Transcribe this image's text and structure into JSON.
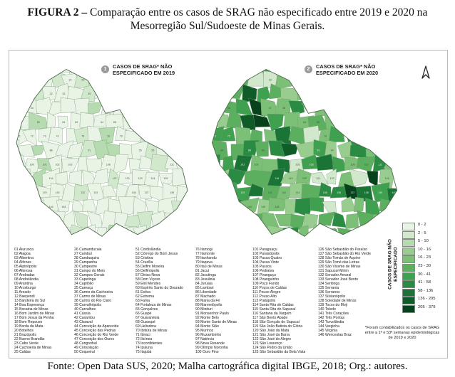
{
  "title": {
    "figure_label": "FIGURA 2 –",
    "text": "Comparação entre os casos de SRAG não especificado entre 2019 e 2020 na Mesorregião Sul/Sudoeste de Minas Gerais."
  },
  "map_2019": {
    "number": "1",
    "label_line1": "CASOS DE SRAG* NÃO",
    "label_line2": "ESPECIFICADO EM 2019"
  },
  "map_2020": {
    "number": "2",
    "label_line1": "CASOS DE SRAG* NÃO",
    "label_line2": "ESPECIFICADO EM 2020"
  },
  "legend": {
    "title": "CASOS DE SRAG NÃO ESPECIFICADO",
    "classes": [
      {
        "label": "0 - 2",
        "color": "#e9f3e6"
      },
      {
        "label": "2 - 5",
        "color": "#d2e8cd"
      },
      {
        "label": "5 - 10",
        "color": "#b7dbb0"
      },
      {
        "label": "10 - 16",
        "color": "#99cd90"
      },
      {
        "label": "16 - 23",
        "color": "#7cbf76"
      },
      {
        "label": "23 - 30",
        "color": "#5caf5f"
      },
      {
        "label": "30 - 41",
        "color": "#3fa04f"
      },
      {
        "label": "41 - 58",
        "color": "#2a8c43"
      },
      {
        "label": "58 - 136",
        "color": "#1a7435"
      },
      {
        "label": "136 - 205",
        "color": "#0f5c28"
      },
      {
        "label": "205 - 379",
        "color": "#08421c"
      }
    ]
  },
  "footnote": "*Foram contabilizados os casos de SRAG entre a 1ª e 53ª semanas epidemiológicas de 2019 e 2020",
  "municipalities": [
    "Aiuruoca",
    "Alagoa",
    "Albertina",
    "Alfenas",
    "Alpinópolis",
    "Alterosa",
    "Andradas",
    "Andrelândia",
    "Arantina",
    "Arceburgo",
    "Areado",
    "Baependi",
    "Bandeira do Sul",
    "Boa Esperança",
    "Bocaina de Minas",
    "Bom Jardim de Minas",
    "Bom Jesus da Penha",
    "Bom Repouso",
    "Borda da Mata",
    "Botelhos",
    "Brazópolis",
    "Bueno Brandão",
    "Cabo Verde",
    "Cachoeira de Minas",
    "Caldas",
    "Camanducaia",
    "Cambuí",
    "Cambuquira",
    "Campanha",
    "Campestre",
    "Campo do Meio",
    "Campos Gerais",
    "Capetinga",
    "Capitólio",
    "Careaçu",
    "Carmo da Cachoeira",
    "Carmo de Minas",
    "Carmo do Rio Claro",
    "Carvalhópolis",
    "Carvalhos",
    "Cássia",
    "Caxambu",
    "Claraval",
    "Conceição da Aparecida",
    "Conceição das Pedras",
    "Conceição do Rio Verde",
    "Conceição dos Ouros",
    "Congonhal",
    "Consolação",
    "Coqueiral",
    "Cordislândia",
    "Córrego do Bom Jesus",
    "Cristina",
    "Cruzília",
    "Delfim Moreira",
    "Delfinópolis",
    "Divisa Nova",
    "Dom Viçoso",
    "Elói Mendes",
    "Espírito Santo do Dourado",
    "Estiva",
    "Extrema",
    "Fama",
    "Fortaleza de Minas",
    "Gonçalves",
    "Guapé",
    "Guaranésia",
    "Guaxupé",
    "Heliodora",
    "Ibitiúra de Minas",
    "Ibiraci",
    "Ilicínea",
    "Inconfidentes",
    "Ipuiuna",
    "Itajubá",
    "Itamogi",
    "Itamonte",
    "Itanhandu",
    "Itapeva",
    "Itaú de Minas",
    "Jacuí",
    "Jacutinga",
    "Jesuânia",
    "Juruaia",
    "Lambari",
    "Liberdade",
    "Machado",
    "Maria da Fé",
    "Marmelópolis",
    "Minduri",
    "Monsenhor Paulo",
    "Monte Belo",
    "Monte Santo de Minas",
    "Monte Sião",
    "Munhoz",
    "Muzambinho",
    "Natércia",
    "Nova Resende",
    "Olímpio Noronha",
    "Ouro Fino",
    "Paraguaçu",
    "Paraisópolis",
    "Passa Quatro",
    "Passa Vinte",
    "Passos",
    "Pedralva",
    "Piranguçu",
    "Piranguinho",
    "Poço Fundo",
    "Poços de Caldas",
    "Pouso Alegre",
    "Pouso Alto",
    "Pratápolis",
    "Santa Rita de Caldas",
    "Santa Rita do Sapucaí",
    "Santana da Vargem",
    "São Bento Abade",
    "São Gonçalo do Sapucaí",
    "São João Batista do Glória",
    "São João da Mata",
    "São José da Barra",
    "São José do Alegre",
    "São Lourenço",
    "São Pedro da União",
    "São Sebastião da Bela Vista",
    "São Sebastião do Paraíso",
    "São Sebastião do Rio Verde",
    "São Tomás de Aquino",
    "São Tomé das Letras",
    "São Vicente de Minas",
    "Sapucaí-Mirim",
    "Senador Amaral",
    "Senador José Bento",
    "Seritinga",
    "Serrania",
    "Serranos",
    "Silvianópolis",
    "Soledade de Minas",
    "Tocos do Moji",
    "Toledo",
    "Três Corações",
    "Três Pontas",
    "Turvolândia",
    "Varginha",
    "Virgínia",
    "Wenceslau Braz"
  ],
  "source": "Fonte: Open Data SUS, 2020; Malha cartográfica digital IBGE, 2018; Org.: autores."
}
